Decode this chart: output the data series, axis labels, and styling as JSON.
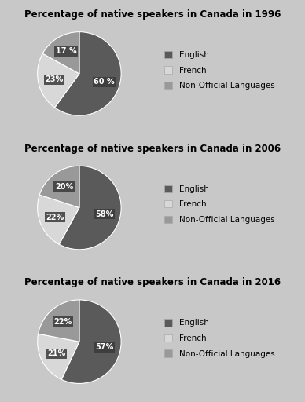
{
  "charts": [
    {
      "title": "Percentage of native speakers in Canada in 1996",
      "values": [
        60,
        23,
        17
      ],
      "labels": [
        "60 %",
        "23%",
        "17 %"
      ],
      "colors": [
        "#5a5a5a",
        "#d8d8d8",
        "#999999"
      ],
      "startangle": 90
    },
    {
      "title": "Percentage of native speakers in Canada in 2006",
      "values": [
        58,
        22,
        20
      ],
      "labels": [
        "58%",
        "22%",
        "20%"
      ],
      "colors": [
        "#5a5a5a",
        "#d8d8d8",
        "#999999"
      ],
      "startangle": 90
    },
    {
      "title": "Percentage of native speakers in Canada in 2016",
      "values": [
        57,
        21,
        22
      ],
      "labels": [
        "57%",
        "21%",
        "22%"
      ],
      "colors": [
        "#5a5a5a",
        "#d8d8d8",
        "#999999"
      ],
      "startangle": 90
    }
  ],
  "legend_labels": [
    "English",
    "French",
    "Non-Official Languages"
  ],
  "legend_colors": [
    "#5a5a5a",
    "#d8d8d8",
    "#999999"
  ],
  "fig_bg": "#c8c8c8",
  "panel_bg": "#e8e8e8",
  "title_fontsize": 8.5,
  "label_fontsize": 7,
  "legend_fontsize": 7.5
}
